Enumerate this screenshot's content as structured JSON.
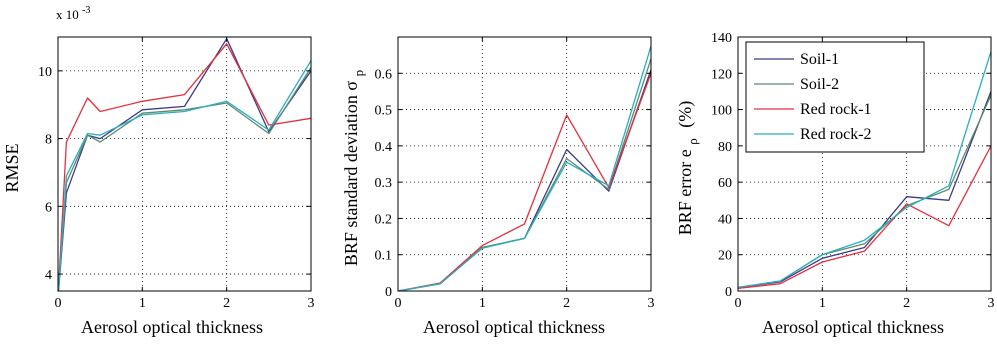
{
  "chart_data": [
    {
      "type": "line",
      "title": "",
      "xlabel": "Aerosol optical thickness",
      "ylabel": "RMSE",
      "exponent_label": "x 10",
      "exponent_power": "-3",
      "xlim": [
        0,
        3
      ],
      "ylim": [
        3.5,
        11
      ],
      "xticks": [
        "0",
        "1",
        "2",
        "3"
      ],
      "yticks": [
        "4",
        "6",
        "8",
        "10"
      ],
      "x": [
        0,
        0.1,
        0.35,
        0.5,
        1,
        1.5,
        2,
        2.5,
        3
      ],
      "series": [
        {
          "name": "Soil-1",
          "color": "#3b3b85",
          "values": [
            3.3,
            6.4,
            8.1,
            8.0,
            8.85,
            8.95,
            10.95,
            8.2,
            10.0
          ]
        },
        {
          "name": "Soil-2",
          "color": "#5d8a6e",
          "values": [
            3.3,
            6.7,
            8.1,
            7.9,
            8.75,
            8.85,
            9.05,
            8.15,
            10.1
          ]
        },
        {
          "name": "Red rock-1",
          "color": "#e0303c",
          "values": [
            3.3,
            7.9,
            9.2,
            8.8,
            9.1,
            9.3,
            10.8,
            8.4,
            8.6
          ]
        },
        {
          "name": "Red rock-2",
          "color": "#2aaec0",
          "values": [
            3.3,
            6.9,
            8.15,
            8.1,
            8.7,
            8.8,
            9.1,
            8.25,
            10.3
          ]
        }
      ]
    },
    {
      "type": "line",
      "title": "",
      "xlabel": "Aerosol optical thickness",
      "ylabel": "BRF standard deviation",
      "ylabel_symbol": "σ",
      "ylabel_subscript": "p",
      "xlim": [
        0,
        3
      ],
      "ylim": [
        0,
        0.7
      ],
      "xticks": [
        "0",
        "1",
        "2",
        "3"
      ],
      "yticks": [
        "0",
        "0.1",
        "0.2",
        "0.3",
        "0.4",
        "0.5",
        "0.6"
      ],
      "x": [
        0,
        0.5,
        1,
        1.5,
        2,
        2.5,
        3
      ],
      "series": [
        {
          "name": "Soil-1",
          "color": "#3b3b85",
          "values": [
            0.0,
            0.02,
            0.12,
            0.145,
            0.39,
            0.275,
            0.61
          ]
        },
        {
          "name": "Soil-2",
          "color": "#5d8a6e",
          "values": [
            0.0,
            0.02,
            0.12,
            0.145,
            0.365,
            0.28,
            0.64
          ]
        },
        {
          "name": "Red rock-1",
          "color": "#e0303c",
          "values": [
            0.0,
            0.022,
            0.125,
            0.185,
            0.485,
            0.285,
            0.6
          ]
        },
        {
          "name": "Red rock-2",
          "color": "#2aaec0",
          "values": [
            0.0,
            0.02,
            0.118,
            0.145,
            0.355,
            0.29,
            0.675
          ]
        }
      ]
    },
    {
      "type": "line",
      "title": "",
      "xlabel": "Aerosol optical thickness",
      "ylabel": "BRF error e",
      "ylabel_subscript": "ρ",
      "ylabel_suffix": "(%)",
      "xlim": [
        0,
        3
      ],
      "ylim": [
        0,
        140
      ],
      "xticks": [
        "0",
        "1",
        "2",
        "3"
      ],
      "yticks": [
        "0",
        "20",
        "40",
        "60",
        "80",
        "100",
        "120",
        "140"
      ],
      "legend_position": "top-left",
      "x": [
        0,
        0.5,
        1,
        1.5,
        2,
        2.5,
        3
      ],
      "series": [
        {
          "name": "Soil-1",
          "color": "#3b3b85",
          "values": [
            2,
            5,
            18,
            24,
            52,
            50,
            110
          ]
        },
        {
          "name": "Soil-2",
          "color": "#5d8a6e",
          "values": [
            2,
            5.5,
            20,
            26,
            47,
            56,
            108
          ]
        },
        {
          "name": "Red rock-1",
          "color": "#e0303c",
          "values": [
            1.5,
            4,
            16,
            22,
            48,
            36,
            80
          ]
        },
        {
          "name": "Red rock-2",
          "color": "#2aaec0",
          "values": [
            2,
            5.5,
            20,
            28,
            46,
            58,
            132
          ]
        }
      ]
    }
  ]
}
